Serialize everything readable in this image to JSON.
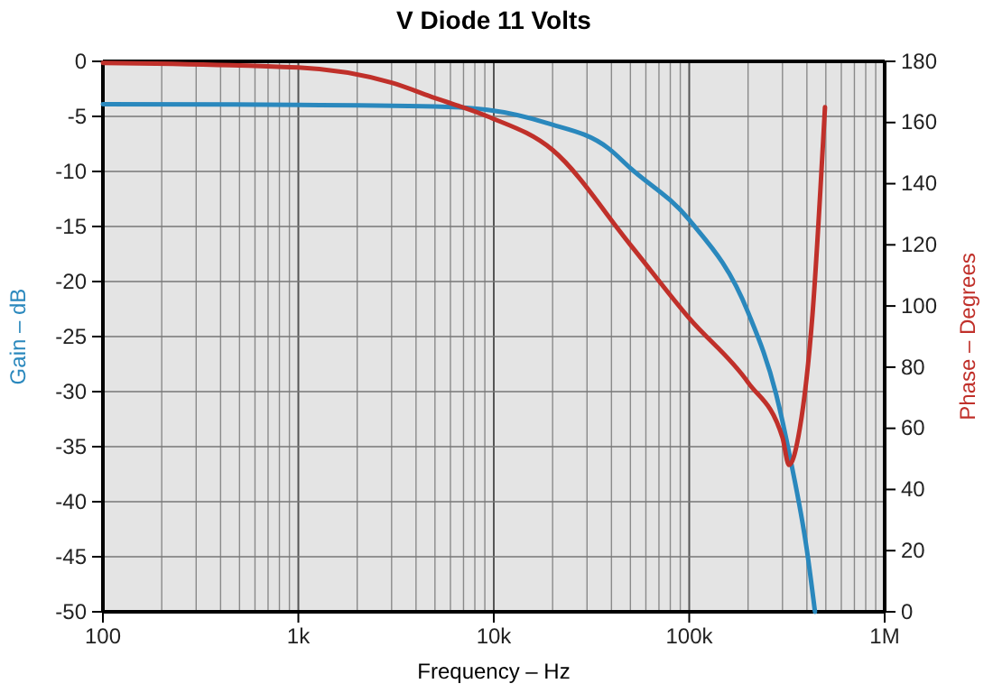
{
  "chart_data": {
    "type": "line",
    "title": "V Diode 11 Volts",
    "xlabel": "Frequency – Hz",
    "ylabel": "Gain – dB",
    "y2label": "Phase – Degrees",
    "log": "x",
    "grid": true,
    "xlim": [
      100,
      1000000
    ],
    "xticks": [
      {
        "value": 100,
        "label": "100"
      },
      {
        "value": 1000,
        "label": "1k"
      },
      {
        "value": 10000,
        "label": "10k"
      },
      {
        "value": 100000,
        "label": "100k"
      },
      {
        "value": 1000000,
        "label": "1M"
      }
    ],
    "ylim": [
      -50,
      0
    ],
    "yticks": [
      -50,
      -45,
      -40,
      -35,
      -30,
      -25,
      -20,
      -15,
      -10,
      -5,
      0
    ],
    "y2lim": [
      0,
      180
    ],
    "y2ticks": [
      0,
      20,
      40,
      60,
      80,
      100,
      120,
      140,
      160,
      180
    ],
    "series": [
      {
        "color": "#2a88bd",
        "x": [
          100,
          1000,
          5000,
          9300,
          18700,
          38600,
          50000,
          100000,
          200000,
          278000,
          330000,
          400000,
          440000
        ],
        "values": [
          -3.9,
          -3.95,
          -4.1,
          -4.4,
          -5.6,
          -7.9,
          -9.7,
          -14.4,
          -22.8,
          -30.2,
          -36.2,
          -44.4,
          -50
        ]
      },
      {
        "color": "#c0302a",
        "axis": "y2",
        "x": [
          100,
          1000,
          3000,
          5000,
          9300,
          20000,
          50000,
          100000,
          200000,
          300000,
          324000,
          368000,
          427000,
          495000
        ],
        "values": [
          179.5,
          178,
          173,
          168,
          162,
          151,
          120,
          96,
          75,
          57,
          48,
          60,
          97,
          165
        ]
      }
    ]
  }
}
